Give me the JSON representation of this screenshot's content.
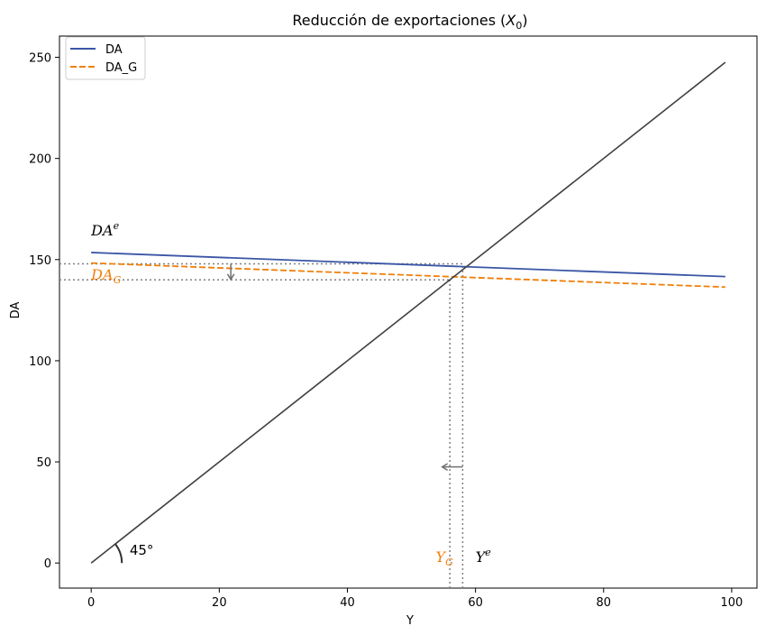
{
  "chart_data": {
    "type": "line",
    "title": "Reducción de exportaciones (X₀)",
    "title_main": "Reducción de exportaciones (",
    "title_var": "X",
    "title_sub": "0",
    "title_close": ")",
    "xlabel": "Y",
    "ylabel": "DA",
    "xlim": [
      -4.95,
      103.95
    ],
    "ylim": [
      -12.4,
      260.5
    ],
    "xticks": [
      0,
      20,
      40,
      60,
      80,
      100
    ],
    "yticks": [
      0,
      50,
      100,
      150,
      200,
      250
    ],
    "grid": false,
    "legend_position": "top-left",
    "series": [
      {
        "name": "DA",
        "style": "solid",
        "color": "#3b56a6",
        "x": [
          0,
          99
        ],
        "y": [
          153.5,
          141.6
        ]
      },
      {
        "name": "DA_G",
        "style": "dashed",
        "color": "#f07f0a",
        "x": [
          0,
          99
        ],
        "y": [
          148.3,
          136.4
        ]
      },
      {
        "name": "45°",
        "style": "solid",
        "color": "#404040",
        "x": [
          0,
          99
        ],
        "y": [
          0,
          247.5
        ]
      }
    ],
    "reference_lines": [
      {
        "kind": "h",
        "y": 147.9,
        "x_end": 58.0
      },
      {
        "kind": "h",
        "y": 140.0,
        "x_end": 56.0
      },
      {
        "kind": "v",
        "x": 58.0,
        "y_end": 147.9
      },
      {
        "kind": "v",
        "x": 56.0,
        "y_end": 140.0
      }
    ],
    "arrows": [
      {
        "from": [
          21.8,
          148.0
        ],
        "to": [
          21.8,
          140.2
        ]
      },
      {
        "from": [
          58.0,
          47.5
        ],
        "to": [
          54.8,
          47.5
        ]
      }
    ],
    "annotations": {
      "da_e": {
        "base": "DA",
        "sup": "e",
        "x": 0,
        "y": 162,
        "color": "#000000"
      },
      "da_g": {
        "base": "DA",
        "sub": "G",
        "x": 0,
        "y": 140,
        "color": "#f07f0a"
      },
      "y_g": {
        "base": "Y",
        "sub": "G",
        "x": 53.8,
        "y": 0.5,
        "color": "#f07f0a"
      },
      "y_e": {
        "base": "Y",
        "sup": "e",
        "x": 60,
        "y": 0.5,
        "color": "#000000"
      },
      "angle": {
        "text": "45°",
        "x": 6.0,
        "y": 4.0,
        "color": "#000000"
      }
    }
  }
}
